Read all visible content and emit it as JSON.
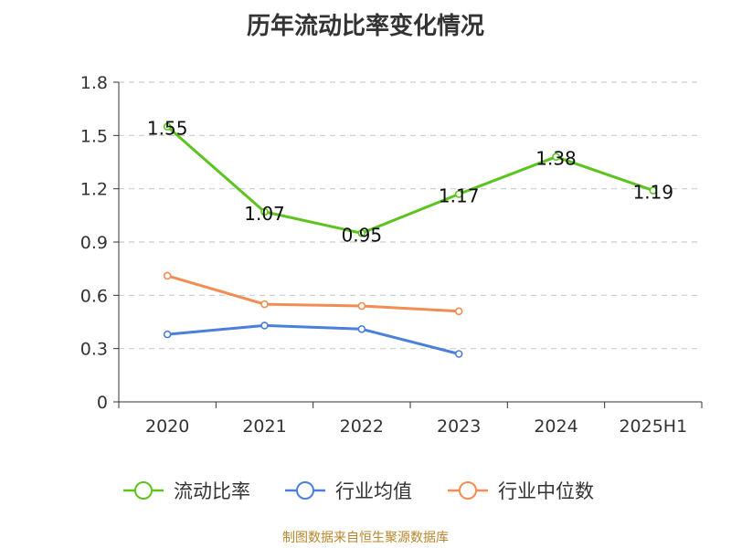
{
  "chart_data": {
    "type": "line",
    "title": "历年流动比率变化情况",
    "categories": [
      "2020",
      "2021",
      "2022",
      "2023",
      "2024",
      "2025H1"
    ],
    "ylim": [
      0,
      1.8
    ],
    "yticks": [
      "0",
      "0.3",
      "0.6",
      "0.9",
      "1.2",
      "1.5",
      "1.8"
    ],
    "grid": true,
    "legend_position": "bottom",
    "series": [
      {
        "name": "流动比率",
        "color": "#5cc31f",
        "values": [
          1.55,
          1.07,
          0.95,
          1.17,
          1.38,
          1.19
        ],
        "labels": [
          "1.55",
          "1.07",
          "0.95",
          "1.17",
          "1.38",
          "1.19"
        ]
      },
      {
        "name": "行业均值",
        "color": "#4a7fdc",
        "values": [
          0.38,
          0.43,
          0.41,
          0.27,
          null,
          null
        ]
      },
      {
        "name": "行业中位数",
        "color": "#f28c52",
        "values": [
          0.71,
          0.55,
          0.54,
          0.51,
          null,
          null
        ]
      }
    ]
  },
  "source": "制图数据来自恒生聚源数据库"
}
